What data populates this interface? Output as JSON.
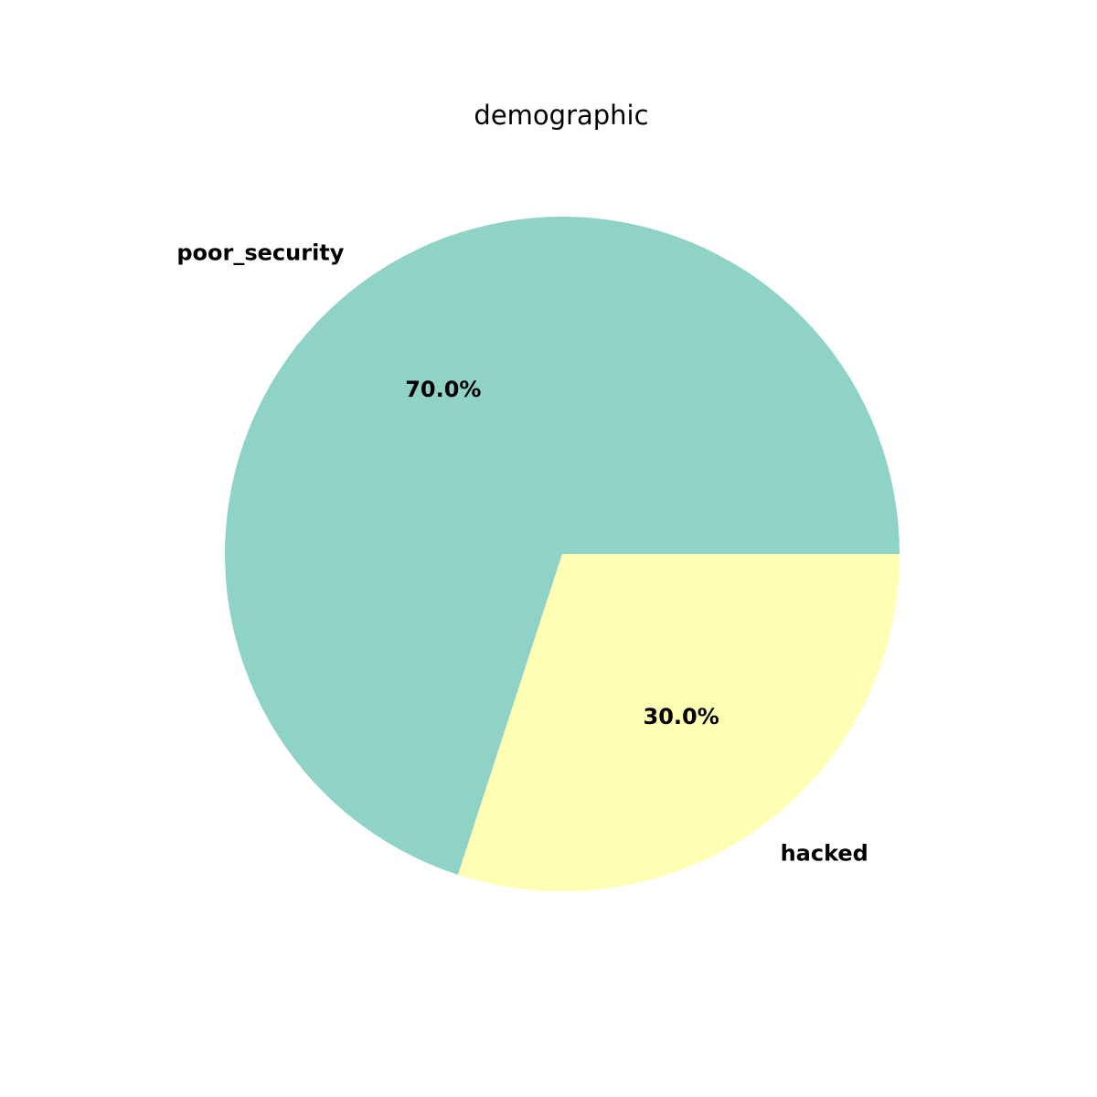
{
  "chart_data": {
    "type": "pie",
    "title": "demographic",
    "categories": [
      "poor_security",
      "hacked"
    ],
    "values": [
      70.0,
      30.0
    ],
    "percent_labels": [
      "70.0%",
      "30.0%"
    ],
    "colors": [
      "#8fd3c7",
      "#ffffb3"
    ],
    "start_angle_deg": 0,
    "direction": "counterclockwise",
    "label_style": "bold"
  }
}
